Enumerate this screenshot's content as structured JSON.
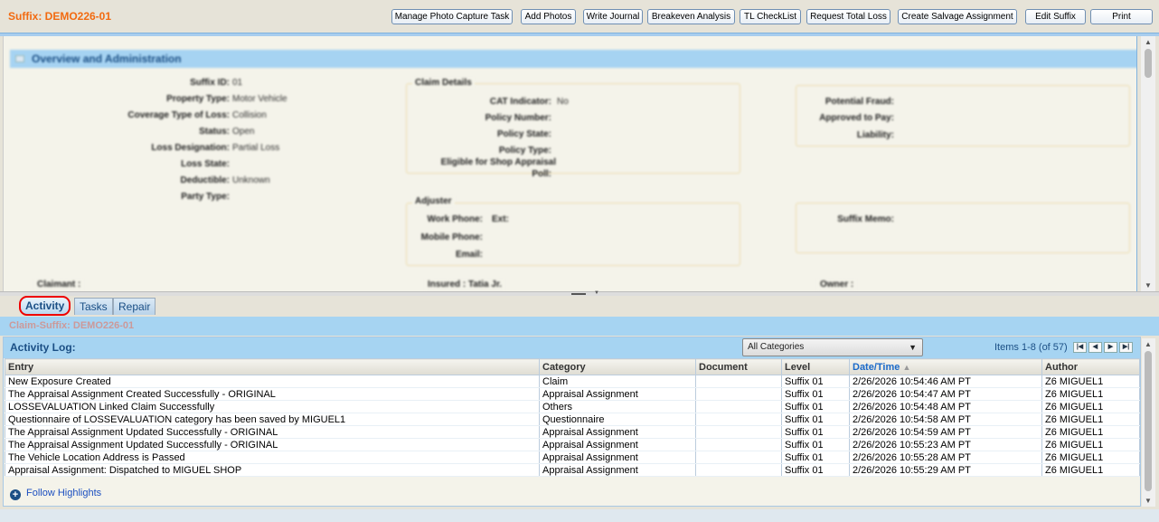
{
  "header": {
    "title": "Suffix: DEMO226-01",
    "buttons": [
      "Manage Photo Capture Task",
      "Add Photos",
      "Write Journal",
      "Breakeven Analysis",
      "TL CheckList",
      "Request Total Loss",
      "Create Salvage Assignment",
      "Edit Suffix",
      "Print"
    ]
  },
  "overview": {
    "title": "Overview and Administration",
    "fields": [
      {
        "label": "Suffix ID:",
        "value": "01"
      },
      {
        "label": "Property Type:",
        "value": "Motor Vehicle"
      },
      {
        "label": "Coverage Type of Loss:",
        "value": "Collision"
      },
      {
        "label": "Status:",
        "value": "Open"
      },
      {
        "label": "Loss Designation:",
        "value": "Partial Loss"
      },
      {
        "label": "Loss State:",
        "value": ""
      },
      {
        "label": "Deductible:",
        "value": "Unknown"
      },
      {
        "label": "Party Type:",
        "value": ""
      }
    ],
    "claim_details": {
      "title": "Claim Details",
      "cat_label": "CAT Indicator:",
      "cat_value": "No",
      "policy_number": "Policy Number:",
      "policy_state": "Policy State:",
      "policy_type": "Policy Type:",
      "eligible": "Eligible for Shop Appraisal",
      "eligible2": "Poll:"
    },
    "fraud": {
      "potential": "Potential Fraud:",
      "approved": "Approved to Pay:",
      "liability": "Liability:"
    },
    "adjuster": {
      "title": "Adjuster",
      "work": "Work Phone:",
      "ext": "Ext:",
      "mobile": "Mobile Phone:",
      "email": "Email:"
    },
    "memo": "Suffix Memo:",
    "claimant": "Claimant :",
    "insured": "Insured : Tatia Jr.",
    "owner": "Owner :"
  },
  "tabs": [
    "Activity",
    "Tasks",
    "Repair"
  ],
  "claim_suffix": "Claim-Suffix: DEMO226-01",
  "activity": {
    "title": "Activity Log:",
    "category_filter": "All Categories",
    "items": "Items 1-8 (of 57)",
    "columns": [
      "Entry",
      "Category",
      "Document",
      "Level",
      "Date/Time",
      "Author"
    ],
    "sort_column": "Date/Time",
    "rows": [
      [
        "New Exposure Created",
        "Claim",
        "",
        "Suffix 01",
        "2/26/2026 10:54:46 AM PT",
        "Z6 MIGUEL1"
      ],
      [
        "The Appraisal Assignment Created Successfully - ORIGINAL",
        "Appraisal Assignment",
        "",
        "Suffix 01",
        "2/26/2026 10:54:47 AM PT",
        "Z6 MIGUEL1"
      ],
      [
        "LOSSEVALUATION Linked Claim Successfully",
        "Others",
        "",
        "Suffix 01",
        "2/26/2026 10:54:48 AM PT",
        "Z6 MIGUEL1"
      ],
      [
        "Questionnaire of LOSSEVALUATION category has been saved by MIGUEL1",
        "Questionnaire",
        "",
        "Suffix 01",
        "2/26/2026 10:54:58 AM PT",
        "Z6 MIGUEL1"
      ],
      [
        "The Appraisal Assignment Updated Successfully - ORIGINAL",
        "Appraisal Assignment",
        "",
        "Suffix 01",
        "2/26/2026 10:54:59 AM PT",
        "Z6 MIGUEL1"
      ],
      [
        "The Appraisal Assignment Updated Successfully - ORIGINAL",
        "Appraisal Assignment",
        "",
        "Suffix 01",
        "2/26/2026 10:55:23 AM PT",
        "Z6 MIGUEL1"
      ],
      [
        "The Vehicle Location Address is Passed",
        "Appraisal Assignment",
        "",
        "Suffix 01",
        "2/26/2026 10:55:28 AM PT",
        "Z6 MIGUEL1"
      ],
      [
        "Appraisal Assignment: Dispatched to MIGUEL SHOP",
        "Appraisal Assignment",
        "",
        "Suffix 01",
        "2/26/2026 10:55:29 AM PT",
        "Z6 MIGUEL1"
      ]
    ],
    "follow": "Follow Highlights"
  },
  "colors": {
    "title": "#f26a10",
    "bar": "#a6d4f2",
    "tab_highlight": "#ee0000"
  }
}
